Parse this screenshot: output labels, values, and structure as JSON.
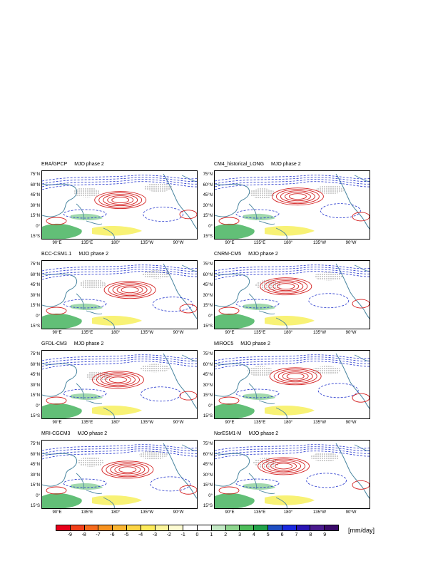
{
  "phase_label": "MJO phase 2",
  "lat_labels": [
    "75°N",
    "60°N",
    "45°N",
    "30°N",
    "15°N",
    "0°",
    "15°S"
  ],
  "lon_labels": [
    "90°E",
    "135°E",
    "180°",
    "135°W",
    "90°W"
  ],
  "panels": [
    {
      "model": "ERA/GPCP"
    },
    {
      "model": "CM4_historical_LONG"
    },
    {
      "model": "BCC-CSM1.1"
    },
    {
      "model": "CNRM-CM5"
    },
    {
      "model": "GFDL-CM3"
    },
    {
      "model": "MIROC5"
    },
    {
      "model": "MRI-CGCM3"
    },
    {
      "model": "NorESM1-M"
    }
  ],
  "colorbar": {
    "labels": [
      "-9",
      "-8",
      "-7",
      "-6",
      "-5",
      "-4",
      "-3",
      "-2",
      "-1",
      "0",
      "1",
      "2",
      "3",
      "4",
      "5",
      "6",
      "7",
      "8",
      "9"
    ],
    "colors": [
      "#e8001a",
      "#f2401a",
      "#f56a1c",
      "#f7921f",
      "#fab532",
      "#fcd444",
      "#fdea5a",
      "#fbf49a",
      "#fdfbd2",
      "#ffffff",
      "#ffffff",
      "#c3e8c4",
      "#8ed68e",
      "#4dbd5a",
      "#22a24a",
      "#1f4fc2",
      "#1a2ae0",
      "#2a15b5",
      "#4a1a8e",
      "#3a0a6a"
    ],
    "units": "[mm/day]"
  },
  "map_colors": {
    "positive_contour": "#d42020",
    "negative_contour": "#2233cc",
    "coastline": "#4a86a0",
    "wet_anomaly": "#2eaa4a",
    "dry_anomaly": "#f5ec3a"
  }
}
